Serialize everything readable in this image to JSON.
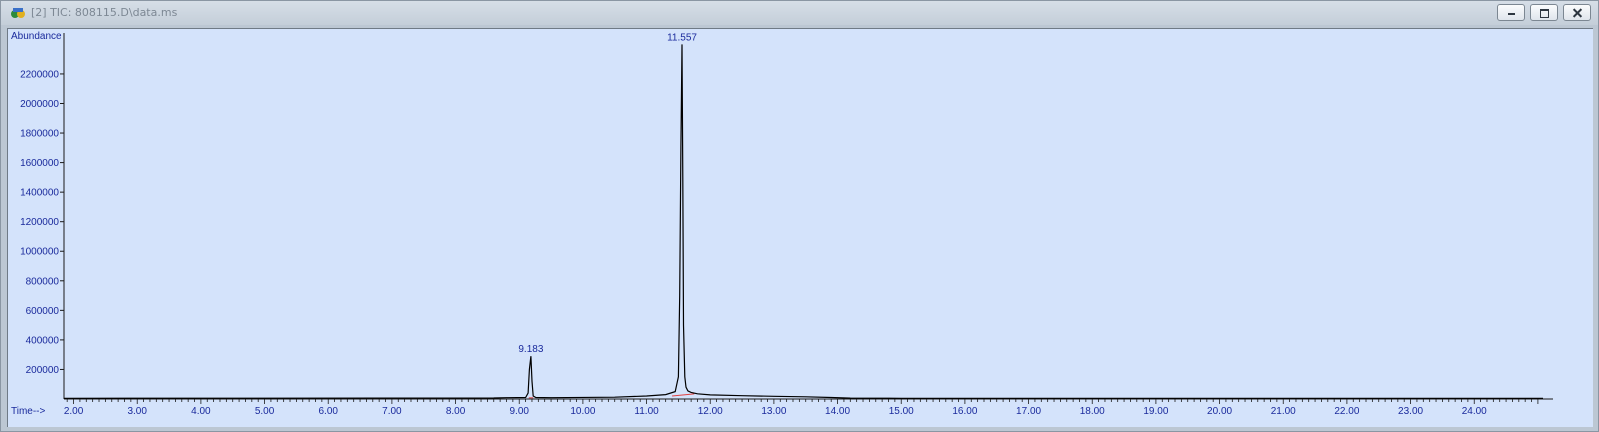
{
  "window": {
    "title": "[2] TIC: 808115.D\\data.ms",
    "app_icon": "chemstation-app-icon",
    "controls": [
      "minimize-icon",
      "restore-icon",
      "close-icon"
    ]
  },
  "chart_data": {
    "type": "line",
    "ylabel": "Abundance",
    "xlabel": "Time-->",
    "xlim": [
      1.85,
      25.08
    ],
    "ylim": [
      0,
      2450000
    ],
    "x_ticks": [
      "2.00",
      "3.00",
      "4.00",
      "5.00",
      "6.00",
      "7.00",
      "8.00",
      "9.00",
      "10.00",
      "11.00",
      "12.00",
      "13.00",
      "14.00",
      "15.00",
      "16.00",
      "17.00",
      "18.00",
      "19.00",
      "20.00",
      "21.00",
      "22.00",
      "23.00",
      "24.00"
    ],
    "y_ticks": [
      "200000",
      "400000",
      "600000",
      "800000",
      "1000000",
      "1200000",
      "1400000",
      "1600000",
      "1800000",
      "2000000",
      "2200000"
    ],
    "series": [
      {
        "color": "#000000",
        "x": [
          1.85,
          8.6,
          8.8,
          9.1,
          9.14,
          9.16,
          9.183,
          9.2,
          9.22,
          9.26,
          9.5,
          10.5,
          11.0,
          11.3,
          11.45,
          11.5,
          11.52,
          11.54,
          11.557,
          11.57,
          11.58,
          11.6,
          11.62,
          11.65,
          11.7,
          11.8,
          12.0,
          12.5,
          13.0,
          13.5,
          13.9,
          14.2,
          15.0,
          25.08
        ],
        "y": [
          5000,
          7000,
          9000,
          10000,
          40000,
          200000,
          290000,
          120000,
          20000,
          10000,
          9000,
          12000,
          20000,
          30000,
          50000,
          150000,
          700000,
          1700000,
          2400000,
          1500000,
          500000,
          150000,
          80000,
          55000,
          45000,
          35000,
          28000,
          22000,
          18000,
          15000,
          10000,
          6000,
          5000,
          5000
        ]
      }
    ],
    "peak_labels": [
      {
        "x": 9.183,
        "y": 290000,
        "text": "9.183"
      },
      {
        "x": 11.557,
        "y": 2400000,
        "text": "11.557"
      }
    ],
    "baseline_markers": [
      {
        "x": [
          9.15,
          9.22
        ],
        "y": [
          8000,
          8000
        ],
        "color": "#e04040"
      },
      {
        "x": [
          11.4,
          11.75
        ],
        "y": [
          20000,
          35000
        ],
        "color": "#e04040"
      }
    ],
    "grid": false
  }
}
